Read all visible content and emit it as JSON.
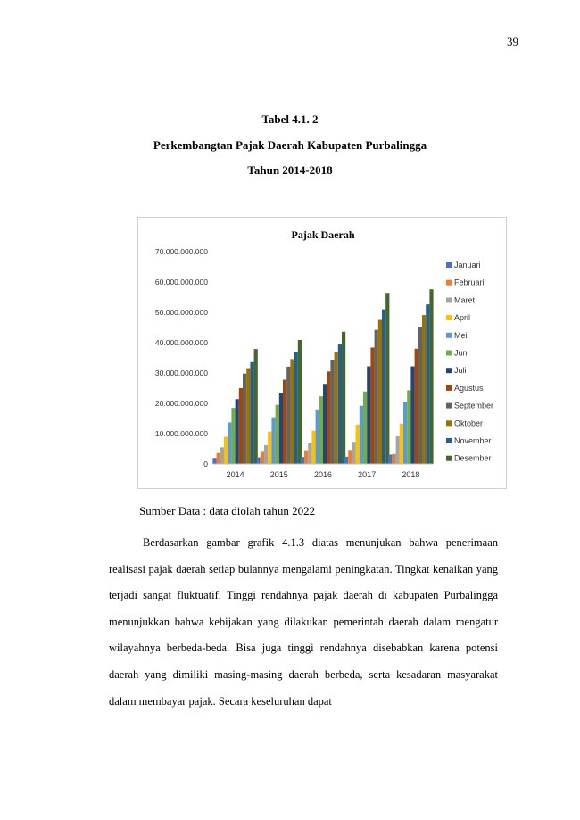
{
  "page_number": "39",
  "caption": {
    "table_number": "Tabel 4.1. 2",
    "title": "Perkembangtan Pajak Daerah Kabupaten Purbalingga",
    "years": "Tahun 2014-2018"
  },
  "chart_data": {
    "type": "bar",
    "title": "Pajak Daerah",
    "categories": [
      "2014",
      "2015",
      "2016",
      "2017",
      "2018"
    ],
    "ylim": [
      0,
      70000000000
    ],
    "yticks": [
      0,
      10000000000,
      20000000000,
      30000000000,
      40000000000,
      50000000000,
      60000000000,
      70000000000
    ],
    "ytick_labels": [
      "0",
      "10.000.000.000",
      "20.000.000.000",
      "30.000.000.000",
      "40.000.000.000",
      "50.000.000.000",
      "60.000.000.000",
      "70.000.000.000"
    ],
    "legend_position": "right",
    "grid": false,
    "series": [
      {
        "name": "Januari",
        "color": "#4472C4",
        "values": [
          2000000000,
          2200000000,
          2300000000,
          2400000000,
          3100000000
        ]
      },
      {
        "name": "Februari",
        "color": "#ED7D31",
        "values": [
          3600000000,
          4000000000,
          4500000000,
          4600000000,
          3300000000
        ]
      },
      {
        "name": "Maret",
        "color": "#A5A5A5",
        "values": [
          5500000000,
          6200000000,
          6800000000,
          7300000000,
          9100000000
        ]
      },
      {
        "name": "April",
        "color": "#FFC000",
        "values": [
          9000000000,
          10700000000,
          11000000000,
          13000000000,
          13300000000
        ]
      },
      {
        "name": "Mei",
        "color": "#5B9BD5",
        "values": [
          13700000000,
          15400000000,
          18000000000,
          19200000000,
          20300000000
        ]
      },
      {
        "name": "Juni",
        "color": "#70AD47",
        "values": [
          18500000000,
          19500000000,
          22300000000,
          23900000000,
          24300000000
        ]
      },
      {
        "name": "Juli",
        "color": "#264478",
        "values": [
          21400000000,
          23300000000,
          26400000000,
          32200000000,
          32200000000
        ]
      },
      {
        "name": "Agustus",
        "color": "#9E480E",
        "values": [
          25000000000,
          27800000000,
          30500000000,
          38400000000,
          38000000000
        ]
      },
      {
        "name": "September",
        "color": "#636363",
        "values": [
          29800000000,
          32100000000,
          34300000000,
          44200000000,
          45000000000
        ]
      },
      {
        "name": "Oktober",
        "color": "#997300",
        "values": [
          31600000000,
          34600000000,
          36800000000,
          47500000000,
          49100000000
        ]
      },
      {
        "name": "November",
        "color": "#255E91",
        "values": [
          33600000000,
          37000000000,
          39400000000,
          51000000000,
          52600000000
        ]
      },
      {
        "name": "Desember",
        "color": "#43682B",
        "values": [
          37900000000,
          40900000000,
          43600000000,
          56400000000,
          57600000000
        ]
      }
    ]
  },
  "source": "Sumber Data : data diolah tahun 2022",
  "paragraph": "Berdasarkan gambar grafik 4.1.3 diatas menunjukan bahwa penerimaan realisasi pajak daerah setiap bulannya mengalami peningkatan. Tingkat kenaikan yang terjadi sangat fluktuatif. Tinggi rendahnya pajak daerah di kabupaten Purbalingga menunjukkan bahwa kebijakan yang dilakukan pemerintah daerah dalam mengatur wilayahnya berbeda-beda. Bisa juga tinggi rendahnya disebabkan karena potensi daerah yang dimiliki masing-masing daerah berbeda, serta kesadaran masyarakat dalam membayar pajak. Secara keseluruhan dapat"
}
